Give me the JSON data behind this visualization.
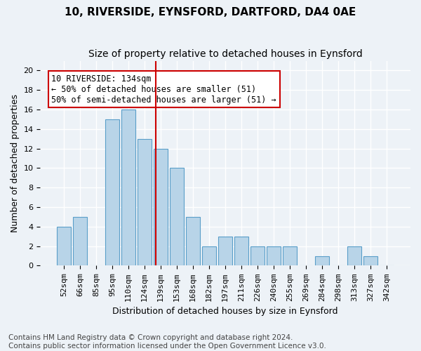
{
  "title": "10, RIVERSIDE, EYNSFORD, DARTFORD, DA4 0AE",
  "subtitle": "Size of property relative to detached houses in Eynsford",
  "xlabel": "Distribution of detached houses by size in Eynsford",
  "ylabel": "Number of detached properties",
  "footnote": "Contains HM Land Registry data © Crown copyright and database right 2024.\nContains public sector information licensed under the Open Government Licence v3.0.",
  "bin_labels": [
    "52sqm",
    "66sqm",
    "85sqm",
    "95sqm",
    "110sqm",
    "124sqm",
    "139sqm",
    "153sqm",
    "168sqm",
    "182sqm",
    "197sqm",
    "211sqm",
    "226sqm",
    "240sqm",
    "255sqm",
    "269sqm",
    "284sqm",
    "298sqm",
    "313sqm",
    "327sqm",
    "342sqm"
  ],
  "bar_values": [
    4,
    5,
    0,
    15,
    16,
    13,
    12,
    10,
    5,
    2,
    3,
    3,
    2,
    2,
    2,
    0,
    1,
    0,
    2,
    1,
    0
  ],
  "bar_color": "#b8d4e8",
  "bar_edge_color": "#5a9ec9",
  "bin_edges": [
    52,
    66,
    85,
    95,
    110,
    124,
    139,
    153,
    168,
    182,
    197,
    211,
    226,
    240,
    255,
    269,
    284,
    298,
    313,
    327,
    342
  ],
  "property_size": 134,
  "annotation_text": "10 RIVERSIDE: 134sqm\n← 50% of detached houses are smaller (51)\n50% of semi-detached houses are larger (51) →",
  "vline_color": "#cc0000",
  "annotation_box_edge_color": "#cc0000",
  "ylim": [
    0,
    21
  ],
  "yticks": [
    0,
    2,
    4,
    6,
    8,
    10,
    12,
    14,
    16,
    18,
    20
  ],
  "background_color": "#edf2f7",
  "grid_color": "#ffffff",
  "title_fontsize": 11,
  "subtitle_fontsize": 10,
  "axis_label_fontsize": 9,
  "tick_fontsize": 8,
  "annotation_fontsize": 8.5,
  "footnote_fontsize": 7.5
}
